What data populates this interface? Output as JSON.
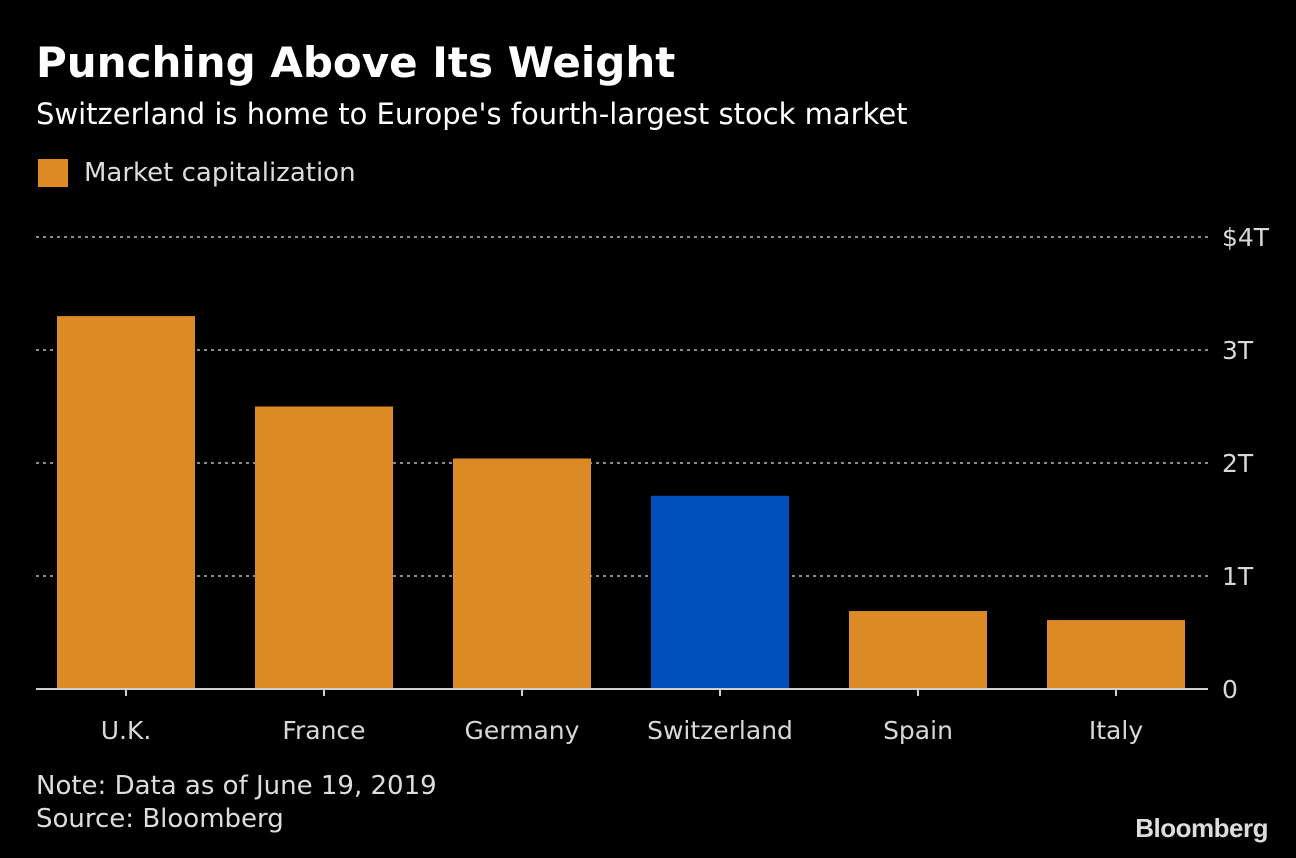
{
  "header": {
    "title": "Punching Above Its Weight",
    "subtitle": "Switzerland is home to Europe's fourth-largest stock market"
  },
  "legend": {
    "label": "Market capitalization",
    "color": "#dc8a26"
  },
  "colors": {
    "bar_default": "#dc8a26",
    "bar_highlight": "#0050bc",
    "gridline": "#8a8a8a",
    "axis_text": "#d8d8d8"
  },
  "chart_data": {
    "type": "bar",
    "categories": [
      "U.K.",
      "France",
      "Germany",
      "Switzerland",
      "Spain",
      "Italy"
    ],
    "series": [
      {
        "name": "Market capitalization",
        "values": [
          3.3,
          2.5,
          2.04,
          1.71,
          0.69,
          0.61
        ]
      }
    ],
    "highlight": "Switzerland",
    "unit": "trillion USD",
    "ylim": [
      0,
      4
    ],
    "yticks": [
      0,
      1,
      2,
      3,
      4
    ],
    "ytick_labels": [
      "0",
      "1T",
      "2T",
      "3T",
      "$4T"
    ],
    "y_axis_side": "right",
    "grid": true,
    "legend_position": "top-left",
    "xlabel": "",
    "ylabel": ""
  },
  "footer": {
    "note": "Note: Data as of June 19, 2019",
    "source": "Source: Bloomberg",
    "brand": "Bloomberg"
  }
}
